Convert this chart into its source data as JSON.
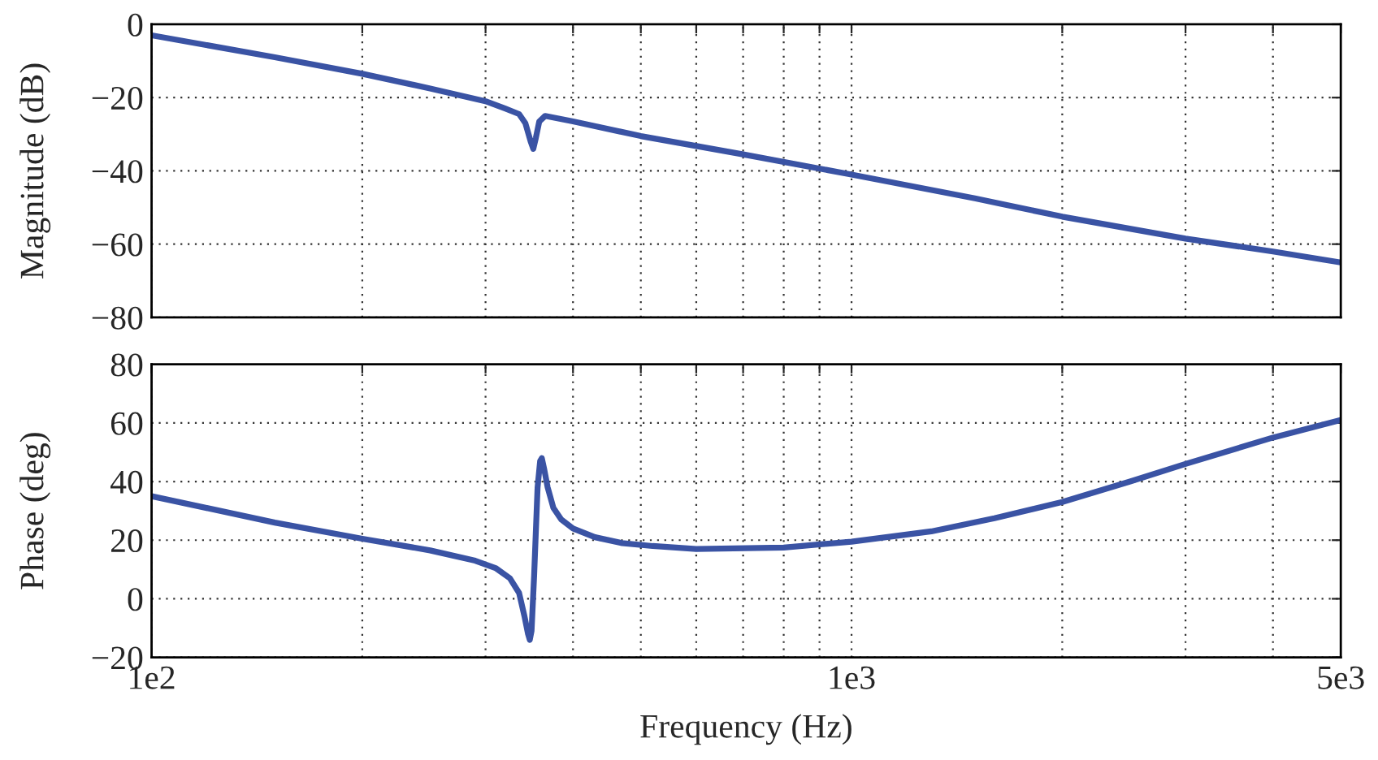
{
  "chart_data": [
    {
      "type": "line",
      "ylabel": "Magnitude (dB)",
      "log": "x",
      "grid": true,
      "tick_labels": "y",
      "xlim": [
        100,
        5000
      ],
      "ylim": [
        -80,
        0
      ],
      "yticks": [
        {
          "value": -80,
          "label": "−80"
        },
        {
          "value": -60,
          "label": "−60"
        },
        {
          "value": -40,
          "label": "−40"
        },
        {
          "value": -20,
          "label": "−20"
        },
        0
      ],
      "xticks": [
        {
          "value": 100,
          "label": null
        },
        {
          "value": 200,
          "label": null
        },
        {
          "value": 300,
          "label": null
        },
        {
          "value": 400,
          "label": null
        },
        {
          "value": 500,
          "label": null
        },
        {
          "value": 600,
          "label": null
        },
        {
          "value": 700,
          "label": null
        },
        {
          "value": 800,
          "label": null
        },
        {
          "value": 900,
          "label": null
        },
        {
          "value": 1000,
          "label": null
        },
        {
          "value": 2000,
          "label": null
        },
        {
          "value": 3000,
          "label": null
        },
        {
          "value": 4000,
          "label": null
        },
        {
          "value": 5000,
          "label": null
        }
      ],
      "series": [
        {
          "color": "#3a53a4",
          "x": [
            100,
            150,
            200,
            250,
            300,
            320,
            335,
            342,
            348,
            351,
            354,
            358,
            365,
            400,
            500,
            700,
            1000,
            1500,
            2000,
            3000,
            4000,
            5000
          ],
          "values": [
            -3,
            -9,
            -13.5,
            -17.5,
            -21,
            -23,
            -24.5,
            -27,
            -32,
            -34,
            -31,
            -26.5,
            -25,
            -26.5,
            -30.5,
            -35.5,
            -41,
            -47.5,
            -52.5,
            -58.5,
            -62,
            -65
          ]
        }
      ]
    },
    {
      "type": "line",
      "ylabel": "Phase (deg)",
      "xlabel": "Frequency (Hz)",
      "log": "x",
      "grid": true,
      "xlim": [
        100,
        5000
      ],
      "ylim": [
        -20,
        80
      ],
      "yticks": [
        {
          "value": -20,
          "label": "−20"
        },
        0,
        20,
        40,
        60,
        80
      ],
      "xticks": [
        {
          "value": 100,
          "label": "1e2"
        },
        {
          "value": 200,
          "label": null
        },
        {
          "value": 300,
          "label": null
        },
        {
          "value": 400,
          "label": null
        },
        {
          "value": 500,
          "label": null
        },
        {
          "value": 600,
          "label": null
        },
        {
          "value": 700,
          "label": null
        },
        {
          "value": 800,
          "label": null
        },
        {
          "value": 900,
          "label": null
        },
        {
          "value": 1000,
          "label": "1e3"
        },
        {
          "value": 2000,
          "label": null
        },
        {
          "value": 3000,
          "label": null
        },
        {
          "value": 4000,
          "label": null
        },
        {
          "value": 5000,
          "label": "5e3"
        }
      ],
      "series": [
        {
          "color": "#3a53a4",
          "x": [
            100,
            150,
            200,
            250,
            290,
            310,
            325,
            335,
            341,
            345,
            347,
            349,
            352,
            356,
            359,
            361,
            364,
            368,
            375,
            385,
            400,
            430,
            470,
            520,
            600,
            800,
            1000,
            1300,
            1600,
            2000,
            2500,
            3000,
            4000,
            5000
          ],
          "values": [
            35,
            26,
            20.5,
            16.5,
            13,
            10.5,
            7,
            2,
            -6,
            -12,
            -14,
            -11,
            8,
            38,
            47,
            48,
            44,
            38,
            31,
            27,
            24,
            21,
            19,
            18,
            17,
            17.5,
            19.5,
            23,
            27.5,
            33,
            40,
            46,
            55,
            61
          ]
        }
      ]
    }
  ]
}
